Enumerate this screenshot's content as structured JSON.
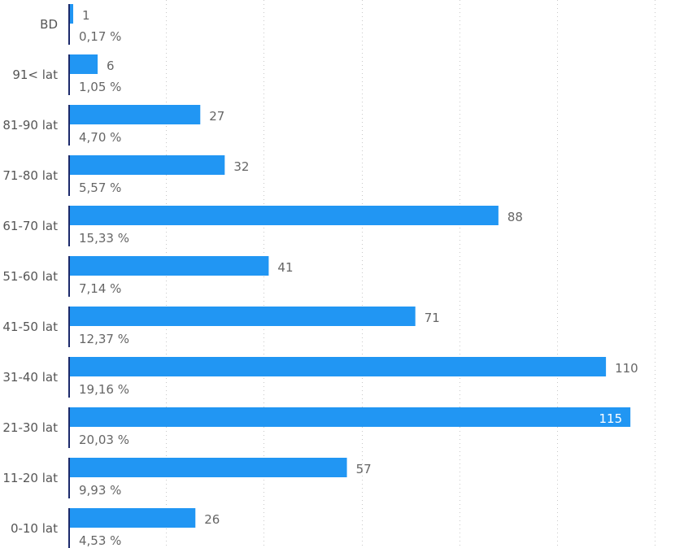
{
  "chart_data": {
    "type": "bar",
    "orientation": "horizontal",
    "categories": [
      "BD",
      "91< lat",
      "81-90 lat",
      "71-80 lat",
      "61-70 lat",
      "51-60 lat",
      "41-50 lat",
      "31-40 lat",
      "21-30 lat",
      "11-20 lat",
      "0-10 lat"
    ],
    "values": [
      1,
      6,
      27,
      32,
      88,
      41,
      71,
      110,
      115,
      57,
      26
    ],
    "value_labels": [
      "1",
      "6",
      "27",
      "32",
      "88",
      "41",
      "71",
      "110",
      "115",
      "57",
      "26"
    ],
    "percent_labels": [
      "0,17 %",
      "1,05 %",
      "4,70 %",
      "5,57 %",
      "15,33 %",
      "7,14 %",
      "12,37 %",
      "19,16 %",
      "20,03 %",
      "9,93 %",
      "4,53 %"
    ],
    "xlim": [
      0,
      120
    ],
    "gridlines": [
      20,
      40,
      60,
      80,
      100,
      120
    ],
    "grid": true,
    "legend": "none",
    "bar_color": "#2196f3",
    "axis_color": "#1c2a6b",
    "title": "",
    "xlabel": "",
    "ylabel": ""
  }
}
